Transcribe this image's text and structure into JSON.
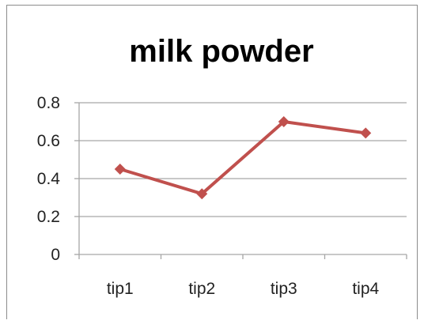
{
  "chart_data": {
    "type": "line",
    "title": "milk powder",
    "categories": [
      "tip1",
      "tip2",
      "tip3",
      "tip4"
    ],
    "series": [
      {
        "values": [
          0.45,
          0.32,
          0.7,
          0.64
        ]
      }
    ],
    "ylim": [
      0,
      0.8
    ],
    "yticks": [
      "0",
      "0.2",
      "0.4",
      "0.6",
      "0.8"
    ],
    "grid": true,
    "legend": "none",
    "colors": {
      "series": "#c0504d",
      "grid": "#a6a6a6",
      "frame": "#8c8c8c"
    }
  }
}
